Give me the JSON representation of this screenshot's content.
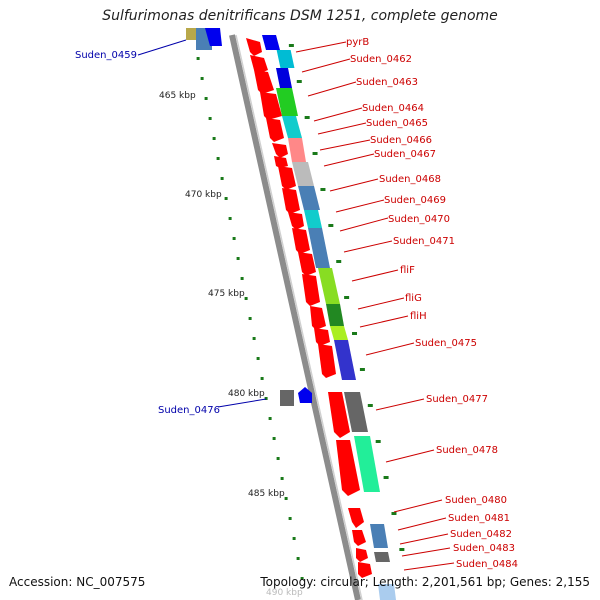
{
  "title": "Sulfurimonas denitrificans DSM 1251, complete genome",
  "footer": {
    "accession": "Accession: NC_007575",
    "summary": "Topology: circular; Length: 2,201,561 bp; Genes: 2,155"
  },
  "colors": {
    "forward_label": "#cc0000",
    "reverse_label": "#0000aa",
    "ruler_tick": "#1a7a1a",
    "backbone": "#8c8c8c"
  },
  "ruler": [
    {
      "label": "465 kbp"
    },
    {
      "label": "470 kbp"
    },
    {
      "label": "475 kbp"
    },
    {
      "label": "480 kbp"
    },
    {
      "label": "485 kbp"
    },
    {
      "label": "490 kbp"
    }
  ],
  "reverse_genes": [
    {
      "label": "Suden_0459"
    },
    {
      "label": "Suden_0476"
    }
  ],
  "forward_genes": [
    {
      "label": "pyrB"
    },
    {
      "label": "Suden_0462"
    },
    {
      "label": "Suden_0463"
    },
    {
      "label": "Suden_0464"
    },
    {
      "label": "Suden_0465"
    },
    {
      "label": "Suden_0466"
    },
    {
      "label": "Suden_0467"
    },
    {
      "label": "Suden_0468"
    },
    {
      "label": "Suden_0469"
    },
    {
      "label": "Suden_0470"
    },
    {
      "label": "Suden_0471"
    },
    {
      "label": "fliF"
    },
    {
      "label": "fliG"
    },
    {
      "label": "fliH"
    },
    {
      "label": "Suden_0475"
    },
    {
      "label": "Suden_0477"
    },
    {
      "label": "Suden_0478"
    },
    {
      "label": "Suden_0480"
    },
    {
      "label": "Suden_0481"
    },
    {
      "label": "Suden_0482"
    },
    {
      "label": "Suden_0483"
    },
    {
      "label": "Suden_0484"
    }
  ]
}
